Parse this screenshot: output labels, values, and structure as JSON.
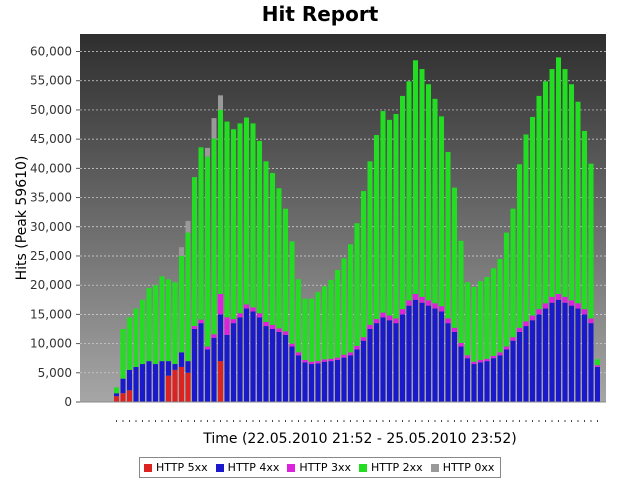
{
  "chart_data": {
    "type": "bar",
    "stacked": true,
    "title": "Hit Report",
    "xlabel": "Time (22.05.2010 21:52 - 25.05.2010 23:52)",
    "ylabel": "Hits (Peak 59610)",
    "ylim": [
      0,
      63000
    ],
    "yticks": [
      0,
      5000,
      10000,
      15000,
      20000,
      25000,
      30000,
      35000,
      40000,
      45000,
      50000,
      55000,
      60000
    ],
    "ytick_labels": [
      "0",
      "5,000",
      "10,000",
      "15,000",
      "20,000",
      "25,000",
      "30,000",
      "35,000",
      "40,000",
      "45,000",
      "50,000",
      "55,000",
      "60,000"
    ],
    "grid": true,
    "legend_position": "bottom",
    "x_count": 75,
    "series": [
      {
        "name": "HTTP 5xx",
        "color": "#dd2222",
        "values": [
          1000,
          1500,
          2000,
          0,
          0,
          0,
          0,
          0,
          4500,
          5500,
          6000,
          5000,
          0,
          0,
          0,
          0,
          7000,
          0,
          0,
          0,
          0,
          0,
          0,
          0,
          0,
          0,
          0,
          0,
          0,
          0,
          0,
          0,
          0,
          0,
          0,
          0,
          0,
          0,
          0,
          0,
          0,
          0,
          0,
          0,
          0,
          0,
          0,
          0,
          0,
          0,
          0,
          0,
          0,
          0,
          0,
          0,
          0,
          0,
          0,
          0,
          0,
          0,
          0,
          0,
          0,
          0,
          0,
          0,
          0,
          0,
          0,
          0,
          0,
          0,
          0
        ]
      },
      {
        "name": "HTTP 4xx",
        "color": "#1a1acc",
        "values": [
          500,
          2500,
          3500,
          6000,
          6500,
          7000,
          6500,
          7000,
          2500,
          1000,
          2500,
          2000,
          12500,
          13500,
          9000,
          11000,
          8000,
          11500,
          13500,
          14500,
          16000,
          15500,
          14500,
          13000,
          12500,
          12000,
          11500,
          9500,
          8000,
          6800,
          6500,
          6600,
          6900,
          7000,
          7200,
          7600,
          8000,
          9000,
          10500,
          12500,
          13500,
          14500,
          14000,
          13500,
          15000,
          16500,
          17500,
          17000,
          16500,
          16000,
          15500,
          13500,
          12000,
          9500,
          7500,
          6500,
          6800,
          7000,
          7500,
          8000,
          9000,
          10500,
          12000,
          13000,
          14000,
          15000,
          16000,
          17000,
          17500,
          17000,
          16500,
          16000,
          15000,
          13500,
          6000
        ]
      },
      {
        "name": "HTTP 3xx",
        "color": "#dd22dd",
        "values": [
          0,
          0,
          0,
          0,
          0,
          0,
          0,
          0,
          0,
          0,
          0,
          0,
          500,
          600,
          500,
          600,
          3500,
          3000,
          700,
          700,
          700,
          700,
          700,
          700,
          700,
          600,
          600,
          500,
          500,
          400,
          400,
          400,
          400,
          400,
          400,
          500,
          500,
          600,
          600,
          700,
          700,
          800,
          800,
          800,
          900,
          900,
          1000,
          1000,
          900,
          900,
          900,
          800,
          700,
          600,
          500,
          400,
          400,
          400,
          400,
          500,
          500,
          600,
          700,
          800,
          800,
          900,
          900,
          1000,
          1000,
          1000,
          900,
          900,
          900,
          800,
          300
        ]
      },
      {
        "name": "HTTP 2xx",
        "color": "#22dd22",
        "values": [
          1000,
          8500,
          9000,
          10000,
          11000,
          12500,
          13500,
          14500,
          14000,
          14000,
          16500,
          22000,
          25500,
          29500,
          32500,
          33500,
          31500,
          33500,
          32500,
          32500,
          32000,
          31500,
          29500,
          27500,
          26000,
          24000,
          21000,
          17500,
          12500,
          10500,
          10800,
          11800,
          12500,
          13500,
          15000,
          16500,
          18500,
          21000,
          25000,
          28000,
          31500,
          34500,
          33500,
          35000,
          36500,
          37500,
          40000,
          39000,
          37000,
          35000,
          32500,
          28500,
          24000,
          17500,
          12500,
          12800,
          13500,
          14000,
          15000,
          16000,
          19500,
          22000,
          28000,
          32000,
          34000,
          36500,
          38000,
          39000,
          40500,
          39000,
          37000,
          34500,
          30500,
          26500,
          1000
        ]
      },
      {
        "name": "HTTP 0xx",
        "color": "#999999",
        "values": [
          0,
          0,
          0,
          0,
          0,
          0,
          0,
          0,
          0,
          0,
          1500,
          2000,
          0,
          0,
          1500,
          3500,
          2500,
          0,
          0,
          0,
          0,
          0,
          0,
          0,
          0,
          0,
          0,
          0,
          0,
          0,
          0,
          0,
          0,
          0,
          0,
          0,
          0,
          0,
          0,
          0,
          0,
          0,
          0,
          0,
          0,
          0,
          0,
          0,
          0,
          0,
          0,
          0,
          0,
          0,
          0,
          0,
          0,
          0,
          0,
          0,
          0,
          0,
          0,
          0,
          0,
          0,
          0,
          0,
          0,
          0,
          0,
          0,
          0,
          0,
          0
        ]
      }
    ]
  }
}
